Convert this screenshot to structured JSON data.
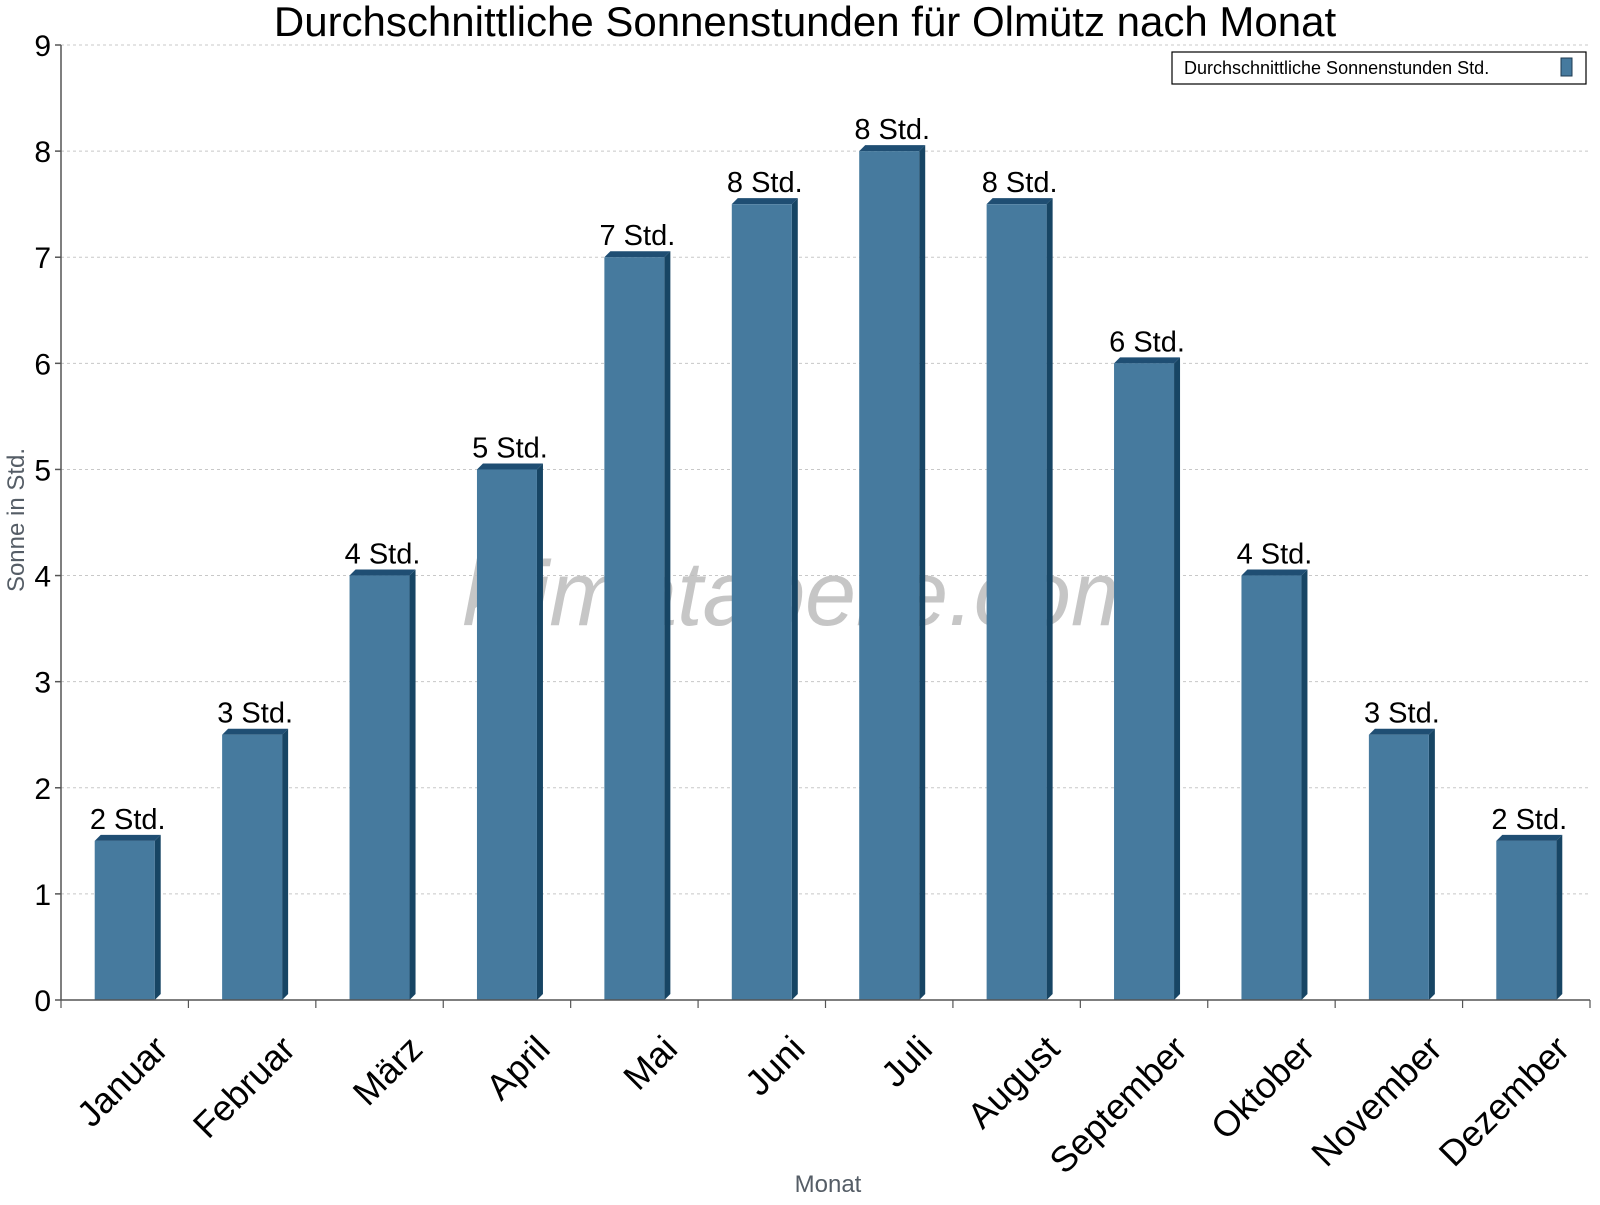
{
  "colors": {
    "bar_front": "#467a9e",
    "bar_top": "#1f4e73",
    "bar_side": "#174564",
    "grid": "#c8c8c8",
    "axis": "#555555"
  },
  "watermark": "klimatabelle.com",
  "chart_data": {
    "type": "bar",
    "title": "Durchschnittliche Sonnenstunden für Olmütz nach Monat",
    "xlabel": "Monat",
    "ylabel": "Sonne in Std.",
    "ylim": [
      0,
      9
    ],
    "yticks": [
      "0",
      "1",
      "2",
      "3",
      "4",
      "5",
      "6",
      "7",
      "8",
      "9"
    ],
    "grid": true,
    "legend_position": "top-right",
    "categories": [
      "Januar",
      "Februar",
      "März",
      "April",
      "Mai",
      "Juni",
      "Juli",
      "August",
      "September",
      "Oktober",
      "November",
      "Dezember"
    ],
    "series": [
      {
        "name": "Durchschnittliche Sonnenstunden Std.",
        "values": [
          1.5,
          2.5,
          4,
          5,
          7,
          7.5,
          8,
          7.5,
          6,
          4,
          2.5,
          1.5
        ],
        "labels": [
          "2 Std.",
          "3 Std.",
          "4 Std.",
          "5 Std.",
          "7 Std.",
          "8 Std.",
          "8 Std.",
          "8 Std.",
          "6 Std.",
          "4 Std.",
          "3 Std.",
          "2 Std."
        ]
      }
    ]
  }
}
